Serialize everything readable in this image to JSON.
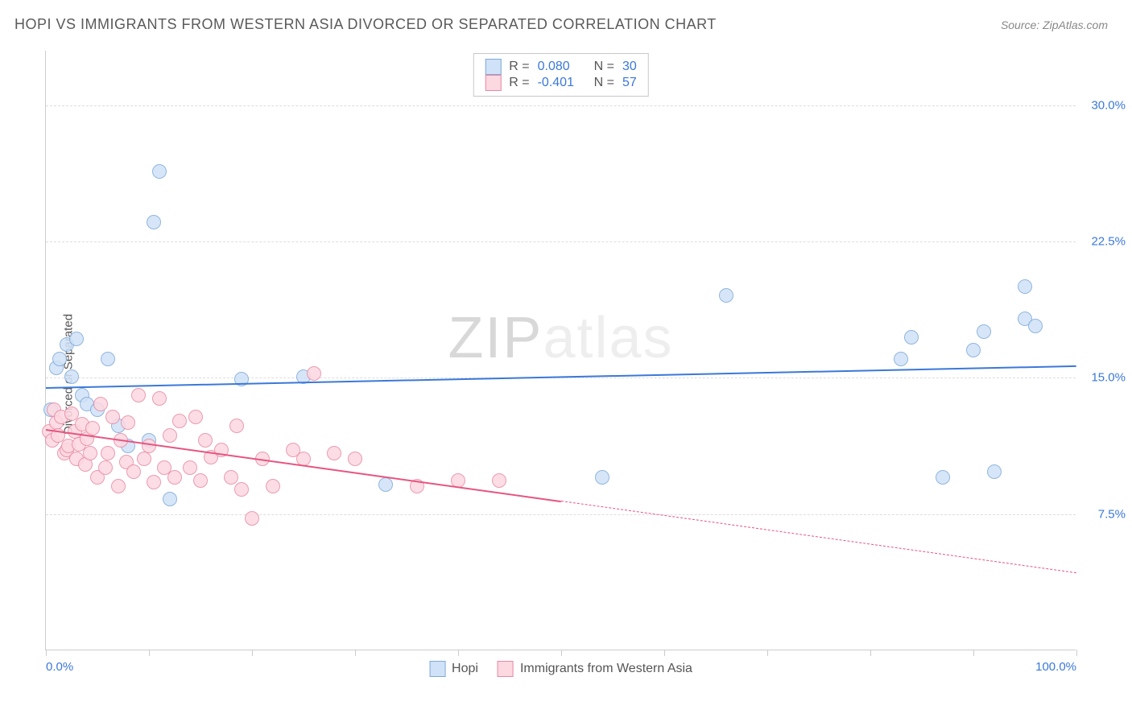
{
  "header": {
    "title": "HOPI VS IMMIGRANTS FROM WESTERN ASIA DIVORCED OR SEPARATED CORRELATION CHART",
    "source": "Source: ZipAtlas.com"
  },
  "watermark": {
    "part1": "ZIP",
    "part2": "atlas"
  },
  "chart": {
    "type": "scatter",
    "ylabel": "Divorced or Separated",
    "xlim": [
      0,
      100
    ],
    "ylim": [
      0,
      33
    ],
    "x_ticks": [
      0,
      10,
      20,
      30,
      40,
      50,
      60,
      70,
      80,
      90,
      100
    ],
    "x_tick_labels": {
      "0": "0.0%",
      "100": "100.0%"
    },
    "y_gridlines": [
      7.5,
      15.0,
      22.5,
      30.0
    ],
    "y_tick_labels": [
      "7.5%",
      "15.0%",
      "22.5%",
      "30.0%"
    ],
    "y_tick_color": "#3b78d8",
    "x_tick_color": "#3b78d8",
    "background_color": "#ffffff",
    "grid_color": "#dddddd",
    "marker_radius": 9,
    "series": [
      {
        "name": "Hopi",
        "fill": "#cfe2f7",
        "stroke": "#7fa9d8",
        "R": "0.080",
        "N": "30",
        "trend": {
          "y_at_x0": 14.5,
          "y_at_x100": 15.7,
          "solid_from": 0,
          "solid_to": 100,
          "color": "#3b78d8"
        },
        "points": [
          [
            0.5,
            13.2
          ],
          [
            1,
            15.5
          ],
          [
            1.3,
            16.0
          ],
          [
            2,
            16.8
          ],
          [
            2.5,
            15.0
          ],
          [
            3,
            17.1
          ],
          [
            3.5,
            14.0
          ],
          [
            4,
            13.5
          ],
          [
            5,
            13.2
          ],
          [
            6,
            16.0
          ],
          [
            7,
            12.3
          ],
          [
            8,
            11.2
          ],
          [
            10,
            11.5
          ],
          [
            11,
            26.3
          ],
          [
            10.5,
            23.5
          ],
          [
            12,
            8.3
          ],
          [
            19,
            14.9
          ],
          [
            25,
            15.0
          ],
          [
            33,
            9.1
          ],
          [
            54,
            9.5
          ],
          [
            66,
            19.5
          ],
          [
            83,
            16.0
          ],
          [
            84,
            17.2
          ],
          [
            87,
            9.5
          ],
          [
            90,
            16.5
          ],
          [
            91,
            17.5
          ],
          [
            92,
            9.8
          ],
          [
            95,
            18.2
          ],
          [
            95,
            20.0
          ],
          [
            96,
            17.8
          ]
        ]
      },
      {
        "name": "Immigrants from Western Asia",
        "fill": "#fcd8e1",
        "stroke": "#e88aa3",
        "R": "-0.401",
        "N": "57",
        "trend": {
          "y_at_x0": 12.2,
          "y_at_x100": 4.3,
          "solid_from": 0,
          "solid_to": 50,
          "color": "#e75480"
        },
        "points": [
          [
            0.3,
            12.0
          ],
          [
            0.6,
            11.5
          ],
          [
            0.8,
            13.2
          ],
          [
            1,
            12.5
          ],
          [
            1.2,
            11.8
          ],
          [
            1.5,
            12.8
          ],
          [
            1.8,
            10.8
          ],
          [
            2,
            11.0
          ],
          [
            2.2,
            11.2
          ],
          [
            2.5,
            13.0
          ],
          [
            2.8,
            12.0
          ],
          [
            3,
            10.5
          ],
          [
            3.2,
            11.3
          ],
          [
            3.5,
            12.4
          ],
          [
            3.8,
            10.2
          ],
          [
            4,
            11.6
          ],
          [
            4.3,
            10.8
          ],
          [
            4.5,
            12.2
          ],
          [
            5,
            9.5
          ],
          [
            5.3,
            13.5
          ],
          [
            5.8,
            10.0
          ],
          [
            6,
            10.8
          ],
          [
            6.5,
            12.8
          ],
          [
            7,
            9.0
          ],
          [
            7.3,
            11.5
          ],
          [
            7.8,
            10.3
          ],
          [
            8,
            12.5
          ],
          [
            8.5,
            9.8
          ],
          [
            9,
            14.0
          ],
          [
            9.5,
            10.5
          ],
          [
            10,
            11.2
          ],
          [
            10.5,
            9.2
          ],
          [
            11,
            13.8
          ],
          [
            11.5,
            10.0
          ],
          [
            12,
            11.8
          ],
          [
            12.5,
            9.5
          ],
          [
            13,
            12.6
          ],
          [
            14,
            10.0
          ],
          [
            14.5,
            12.8
          ],
          [
            15,
            9.3
          ],
          [
            15.5,
            11.5
          ],
          [
            16,
            10.6
          ],
          [
            17,
            11.0
          ],
          [
            18,
            9.5
          ],
          [
            18.5,
            12.3
          ],
          [
            19,
            8.8
          ],
          [
            20,
            7.2
          ],
          [
            21,
            10.5
          ],
          [
            22,
            9.0
          ],
          [
            24,
            11.0
          ],
          [
            25,
            10.5
          ],
          [
            26,
            15.2
          ],
          [
            28,
            10.8
          ],
          [
            30,
            10.5
          ],
          [
            36,
            9.0
          ],
          [
            40,
            9.3
          ],
          [
            44,
            9.3
          ]
        ]
      }
    ],
    "legend_top": {
      "rows": [
        {
          "swatch_fill": "#cfe2f7",
          "swatch_stroke": "#7fa9d8",
          "r_label": "R =",
          "r_val": "0.080",
          "n_label": "N =",
          "n_val": "30"
        },
        {
          "swatch_fill": "#fcd8e1",
          "swatch_stroke": "#e88aa3",
          "r_label": "R =",
          "r_val": "-0.401",
          "n_label": "N =",
          "n_val": "57"
        }
      ],
      "val_color": "#3b78d8",
      "label_color": "#555"
    },
    "legend_bottom": [
      {
        "label": "Hopi",
        "fill": "#cfe2f7",
        "stroke": "#7fa9d8"
      },
      {
        "label": "Immigrants from Western Asia",
        "fill": "#fcd8e1",
        "stroke": "#e88aa3"
      }
    ]
  }
}
